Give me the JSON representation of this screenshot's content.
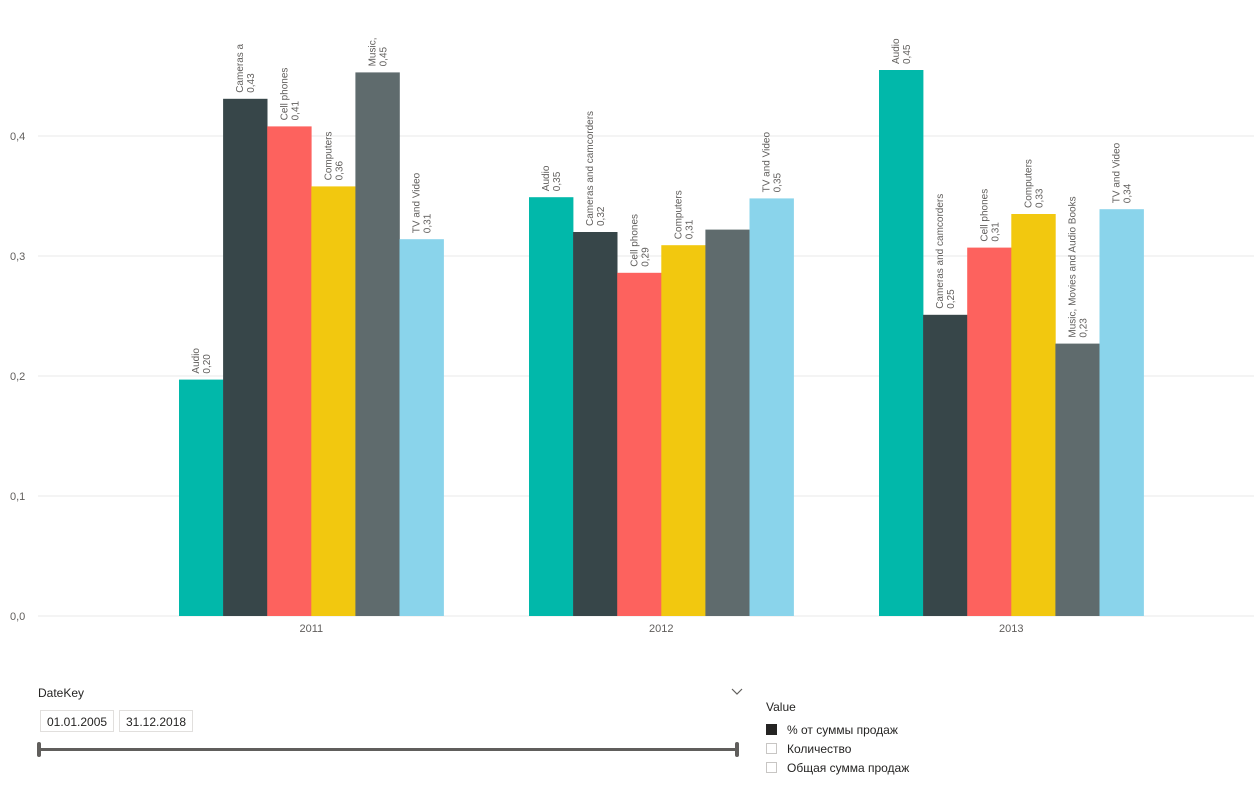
{
  "chart_data": {
    "type": "bar",
    "categories": [
      "2011",
      "2012",
      "2013"
    ],
    "yticks": [
      "0,0",
      "0,1",
      "0,2",
      "0,3",
      "0,4"
    ],
    "ylim": [
      0,
      0.5
    ],
    "grid": true,
    "groups": [
      {
        "category": "2011",
        "bars": [
          {
            "label": "Audio",
            "value_text": "0,20",
            "value": 0.197,
            "color": "#01b8aa"
          },
          {
            "label": "Cameras a",
            "value_text": "0,43",
            "value": 0.431,
            "color": "#374649"
          },
          {
            "label": "Cell phones",
            "value_text": "0,41",
            "value": 0.408,
            "color": "#fd625e"
          },
          {
            "label": "Computers",
            "value_text": "0,36",
            "value": 0.358,
            "color": "#f2c80f"
          },
          {
            "label": "Music,",
            "value_text": "0,45",
            "value": 0.453,
            "color": "#5f6b6d"
          },
          {
            "label": "TV and Video",
            "value_text": "0,31",
            "value": 0.314,
            "color": "#8ad4eb"
          }
        ]
      },
      {
        "category": "2012",
        "bars": [
          {
            "label": "Audio",
            "value_text": "0,35",
            "value": 0.349,
            "color": "#01b8aa"
          },
          {
            "label": "Cameras and camcorders",
            "value_text": "0,32",
            "value": 0.32,
            "color": "#374649"
          },
          {
            "label": "Cell phones",
            "value_text": "0,29",
            "value": 0.286,
            "color": "#fd625e"
          },
          {
            "label": "Computers",
            "value_text": "0,31",
            "value": 0.309,
            "color": "#f2c80f"
          },
          {
            "label": "",
            "value_text": "",
            "value": 0.322,
            "color": "#5f6b6d"
          },
          {
            "label": "TV and Video",
            "value_text": "0,35",
            "value": 0.348,
            "color": "#8ad4eb"
          }
        ]
      },
      {
        "category": "2013",
        "bars": [
          {
            "label": "Audio",
            "value_text": "0,45",
            "value": 0.455,
            "color": "#01b8aa"
          },
          {
            "label": "Cameras and camcorders",
            "value_text": "0,25",
            "value": 0.251,
            "color": "#374649"
          },
          {
            "label": "Cell phones",
            "value_text": "0,31",
            "value": 0.307,
            "color": "#fd625e"
          },
          {
            "label": "Computers",
            "value_text": "0,33",
            "value": 0.335,
            "color": "#f2c80f"
          },
          {
            "label": "Music, Movies and Audio Books",
            "value_text": "0,23",
            "value": 0.227,
            "color": "#5f6b6d"
          },
          {
            "label": "TV and Video",
            "value_text": "0,34",
            "value": 0.339,
            "color": "#8ad4eb"
          }
        ]
      }
    ]
  },
  "slicer": {
    "title": "DateKey",
    "start_date": "01.01.2005",
    "end_date": "31.12.2018"
  },
  "legend": {
    "title": "Value",
    "items": [
      {
        "label": "% от суммы продаж",
        "checked": true
      },
      {
        "label": "Количество",
        "checked": false
      },
      {
        "label": "Общая сумма продаж",
        "checked": false
      }
    ]
  }
}
